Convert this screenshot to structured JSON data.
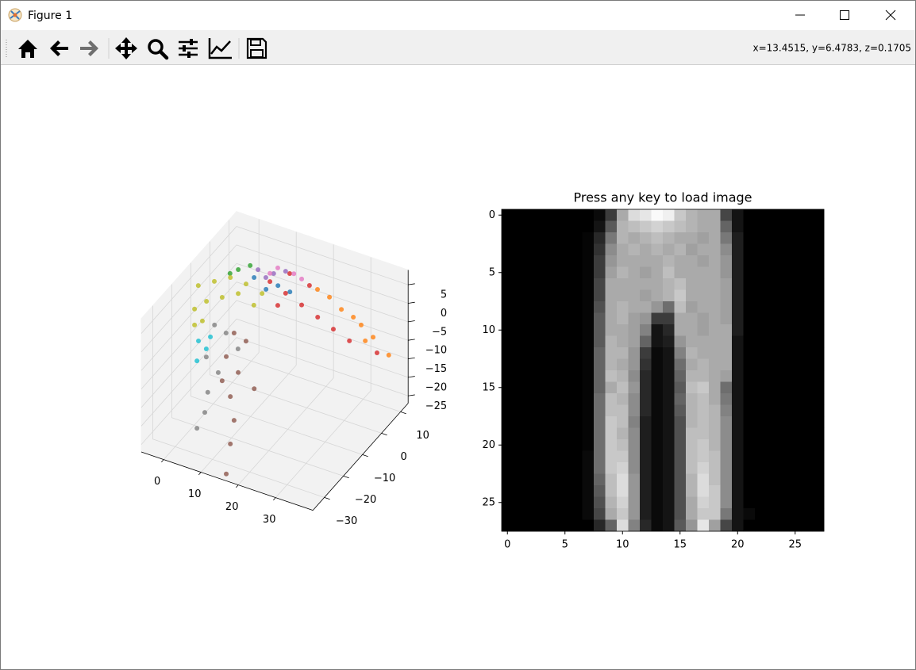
{
  "window": {
    "title": "Figure 1"
  },
  "toolbar": {
    "status": "x=13.4515, y=6.4783, z=0.1705"
  },
  "chart_data": [
    {
      "type": "scatter3d",
      "xlim": [
        -6,
        40
      ],
      "ylim": [
        -36,
        14
      ],
      "zlim": [
        -27,
        9
      ],
      "xticks": [
        0,
        10,
        20,
        30
      ],
      "yticks": [
        {
          "value": -30,
          "label": "−30"
        },
        {
          "value": -20,
          "label": "−20"
        },
        {
          "value": -10,
          "label": "−10"
        },
        0,
        10
      ],
      "zticks": [
        {
          "value": -25,
          "label": "−25"
        },
        {
          "value": -20,
          "label": "−20"
        },
        {
          "value": -15,
          "label": "−15"
        },
        {
          "value": -10,
          "label": "−10"
        },
        {
          "value": -5,
          "label": "−5"
        },
        0,
        5
      ],
      "grid": true,
      "series": [
        {
          "color": "#1f77b4",
          "x": [
            9.7,
            3.3,
            12.9,
            6.5
          ],
          "y": [
            5,
            5,
            5,
            5
          ],
          "z": [
            -0.4,
            -0.4,
            -1.0,
            -2.5
          ]
        },
        {
          "color": "#ff7f0e",
          "x": [
            20.3,
            26.7,
            32.0,
            35.2,
            39.4,
            29.9,
            23.5,
            33.1
          ],
          "y": [
            5,
            5,
            5,
            5,
            5,
            5,
            5,
            5
          ],
          "z": [
            2.2,
            -1.0,
            -3.4,
            -5.6,
            -9.0,
            -2.0,
            1.2,
            -7.3
          ]
        },
        {
          "color": "#2ca02c",
          "x": [
            -3.5,
            -0.3,
            -5.7
          ],
          "y": [
            10,
            10,
            10
          ],
          "z": [
            -3.5,
            -1.3,
            -5.3
          ]
        },
        {
          "color": "#d62728",
          "x": [
            10.1,
            14.3,
            18.6,
            22.9,
            27.1,
            31.4,
            15.4,
            20.7,
            12.2,
            38.8
          ],
          "y": [
            0,
            0,
            0,
            0,
            0,
            0,
            0,
            0,
            0,
            0
          ],
          "z": [
            3.7,
            2.0,
            0.3,
            -1.5,
            -3.3,
            -5.0,
            7.7,
            6.3,
            -2.0,
            -5.7
          ]
        },
        {
          "color": "#9467bd",
          "x": [
            1.8,
            6.0,
            9.2,
            3.9
          ],
          "y": [
            10,
            10,
            10,
            10
          ],
          "z": [
            -1.7,
            -1.3,
            0.4,
            -3.1
          ]
        },
        {
          "color": "#8c564b",
          "x": [
            10.7,
            13.9,
            8.6,
            11.8,
            9.7,
            10.7,
            9.7,
            8.6,
            16.1,
            7.5
          ],
          "y": [
            -20,
            -20,
            -20,
            -20,
            -20,
            -20,
            -20,
            -20,
            -20,
            -20
          ],
          "z": [
            1.6,
            0.5,
            -5.5,
            -8.7,
            -15.9,
            -22.0,
            -28.7,
            -37.2,
            -11.6,
            -12.4
          ]
        },
        {
          "color": "#e377c2",
          "x": [
            7.1,
            11.4,
            5.0,
            13.5
          ],
          "y": [
            10,
            10,
            10,
            10
          ],
          "z": [
            0.6,
            0.5,
            -1.6,
            -0.2
          ]
        },
        {
          "color": "#7f7f7f",
          "x": [
            2.9,
            6.0,
            0.7,
            3.9,
            1.1,
            0.3,
            9.2,
            -1.8
          ],
          "y": [
            -15,
            -15,
            -15,
            -15,
            -15,
            -15,
            -15,
            -15
          ],
          "z": [
            -1.8,
            -2.9,
            -11.2,
            -14.3,
            -20.6,
            -26.3,
            -6.1,
            -31.3
          ]
        },
        {
          "color": "#bcbd22",
          "x": [
            -4.0,
            0.3,
            4.6,
            8.8,
            13.1,
            -5.0,
            -1.8,
            2.4,
            6.7,
            -2.9,
            -5.0,
            10.9
          ],
          "y": [
            -10,
            -10,
            -10,
            -10,
            -10,
            -10,
            -10,
            -10,
            -10,
            -10,
            -10,
            -10
          ],
          "z": [
            3.6,
            6.2,
            8.7,
            8.4,
            7.3,
            -3.1,
            0.1,
            2.6,
            5.1,
            -5.6,
            -7.4,
            3.4
          ]
        },
        {
          "color": "#17becf",
          "x": [
            -1.4,
            0.7,
            -1.8,
            1.8
          ],
          "y": [
            -15,
            -15,
            -15,
            -15
          ],
          "z": [
            -7.6,
            -9.0,
            -13.1,
            -5.4
          ]
        }
      ]
    },
    {
      "type": "image",
      "title": "Press any key to load image",
      "xlim": [
        -0.5,
        27.5
      ],
      "ylim": [
        27.5,
        -0.5
      ],
      "xticks": [
        0,
        5,
        10,
        15,
        20,
        25
      ],
      "yticks": [
        0,
        5,
        10,
        15,
        20,
        25
      ],
      "cmap": "gray",
      "values": [
        [
          0,
          0,
          0,
          0,
          0,
          0,
          0,
          0,
          10,
          60,
          170,
          220,
          230,
          250,
          240,
          200,
          180,
          170,
          170,
          70,
          20,
          0,
          0,
          0,
          0,
          0,
          0,
          0
        ],
        [
          0,
          0,
          0,
          0,
          0,
          0,
          0,
          0,
          20,
          90,
          180,
          190,
          200,
          210,
          200,
          190,
          180,
          170,
          170,
          100,
          20,
          0,
          0,
          0,
          0,
          0,
          0,
          0
        ],
        [
          0,
          0,
          0,
          0,
          0,
          0,
          0,
          5,
          40,
          120,
          180,
          170,
          180,
          190,
          180,
          170,
          170,
          160,
          170,
          120,
          30,
          0,
          0,
          0,
          0,
          0,
          0,
          0
        ],
        [
          0,
          0,
          0,
          0,
          0,
          0,
          0,
          5,
          50,
          140,
          170,
          180,
          170,
          180,
          170,
          180,
          160,
          170,
          170,
          140,
          30,
          0,
          0,
          0,
          0,
          0,
          0,
          0
        ],
        [
          0,
          0,
          0,
          0,
          0,
          0,
          0,
          5,
          60,
          150,
          170,
          170,
          170,
          170,
          180,
          170,
          170,
          160,
          170,
          150,
          30,
          0,
          0,
          0,
          0,
          0,
          0,
          0
        ],
        [
          0,
          0,
          0,
          0,
          0,
          0,
          0,
          5,
          60,
          160,
          180,
          170,
          160,
          170,
          190,
          170,
          170,
          170,
          170,
          150,
          30,
          0,
          0,
          0,
          0,
          0,
          0,
          0
        ],
        [
          0,
          0,
          0,
          0,
          0,
          0,
          0,
          5,
          70,
          170,
          170,
          170,
          170,
          170,
          180,
          190,
          170,
          170,
          170,
          160,
          30,
          0,
          0,
          0,
          0,
          0,
          0,
          0
        ],
        [
          0,
          0,
          0,
          0,
          0,
          0,
          0,
          5,
          70,
          170,
          170,
          170,
          160,
          170,
          180,
          200,
          170,
          170,
          170,
          160,
          30,
          0,
          0,
          0,
          0,
          0,
          0,
          0
        ],
        [
          0,
          0,
          0,
          0,
          0,
          0,
          0,
          5,
          80,
          170,
          180,
          170,
          170,
          150,
          110,
          190,
          160,
          170,
          170,
          160,
          30,
          0,
          0,
          0,
          0,
          0,
          0,
          0
        ],
        [
          0,
          0,
          0,
          0,
          0,
          0,
          0,
          5,
          90,
          170,
          180,
          160,
          150,
          60,
          60,
          170,
          170,
          160,
          170,
          160,
          30,
          0,
          0,
          0,
          0,
          0,
          0,
          0
        ],
        [
          0,
          0,
          0,
          0,
          0,
          0,
          0,
          5,
          90,
          170,
          170,
          160,
          130,
          20,
          40,
          170,
          170,
          160,
          170,
          170,
          30,
          0,
          0,
          0,
          0,
          0,
          0,
          0
        ],
        [
          0,
          0,
          0,
          0,
          0,
          0,
          0,
          5,
          90,
          180,
          170,
          160,
          100,
          20,
          30,
          150,
          170,
          170,
          170,
          170,
          20,
          0,
          0,
          0,
          0,
          0,
          0,
          0
        ],
        [
          0,
          0,
          0,
          0,
          0,
          0,
          0,
          5,
          100,
          180,
          180,
          150,
          60,
          10,
          20,
          130,
          180,
          170,
          170,
          170,
          20,
          0,
          0,
          0,
          0,
          0,
          0,
          0
        ],
        [
          0,
          0,
          0,
          0,
          0,
          0,
          0,
          5,
          100,
          180,
          170,
          150,
          50,
          10,
          20,
          110,
          170,
          180,
          170,
          170,
          20,
          0,
          0,
          0,
          0,
          0,
          0,
          0
        ],
        [
          0,
          0,
          0,
          0,
          0,
          0,
          0,
          5,
          100,
          190,
          180,
          140,
          40,
          10,
          20,
          100,
          180,
          180,
          170,
          160,
          20,
          0,
          0,
          0,
          0,
          0,
          0,
          0
        ],
        [
          0,
          0,
          0,
          0,
          0,
          0,
          0,
          5,
          100,
          170,
          190,
          150,
          40,
          10,
          20,
          90,
          190,
          200,
          170,
          110,
          20,
          0,
          0,
          0,
          0,
          0,
          0,
          0
        ],
        [
          0,
          0,
          0,
          0,
          0,
          0,
          0,
          5,
          110,
          190,
          180,
          140,
          40,
          10,
          20,
          100,
          180,
          190,
          170,
          120,
          20,
          0,
          0,
          0,
          0,
          0,
          0,
          0
        ],
        [
          0,
          0,
          0,
          0,
          0,
          0,
          0,
          5,
          110,
          190,
          190,
          140,
          40,
          10,
          20,
          90,
          180,
          190,
          180,
          130,
          20,
          0,
          0,
          0,
          0,
          0,
          0,
          0
        ],
        [
          0,
          0,
          0,
          0,
          0,
          0,
          0,
          5,
          110,
          200,
          190,
          130,
          30,
          10,
          20,
          80,
          180,
          190,
          180,
          140,
          20,
          0,
          0,
          0,
          0,
          0,
          0,
          0
        ],
        [
          0,
          0,
          0,
          0,
          0,
          0,
          0,
          5,
          110,
          200,
          180,
          140,
          30,
          10,
          20,
          80,
          190,
          190,
          180,
          140,
          20,
          0,
          0,
          0,
          0,
          0,
          0,
          0
        ],
        [
          0,
          0,
          0,
          0,
          0,
          0,
          0,
          5,
          110,
          200,
          190,
          140,
          30,
          10,
          20,
          80,
          190,
          200,
          180,
          140,
          20,
          0,
          0,
          0,
          0,
          0,
          0,
          0
        ],
        [
          0,
          0,
          0,
          0,
          0,
          0,
          0,
          10,
          110,
          200,
          200,
          140,
          30,
          10,
          20,
          80,
          190,
          200,
          190,
          140,
          20,
          0,
          0,
          0,
          0,
          0,
          0,
          0
        ],
        [
          0,
          0,
          0,
          0,
          0,
          0,
          0,
          10,
          110,
          200,
          210,
          140,
          30,
          10,
          20,
          80,
          190,
          210,
          190,
          140,
          20,
          0,
          0,
          0,
          0,
          0,
          0,
          0
        ],
        [
          0,
          0,
          0,
          0,
          0,
          0,
          0,
          10,
          100,
          190,
          220,
          150,
          30,
          10,
          20,
          80,
          180,
          220,
          190,
          140,
          20,
          0,
          0,
          0,
          0,
          0,
          0,
          0
        ],
        [
          0,
          0,
          0,
          0,
          0,
          0,
          0,
          10,
          90,
          190,
          220,
          150,
          30,
          10,
          20,
          80,
          180,
          220,
          200,
          140,
          20,
          0,
          0,
          0,
          0,
          0,
          0,
          0
        ],
        [
          0,
          0,
          0,
          0,
          0,
          0,
          0,
          10,
          80,
          180,
          210,
          150,
          30,
          10,
          20,
          80,
          170,
          210,
          200,
          140,
          20,
          0,
          0,
          0,
          0,
          0,
          0,
          0
        ],
        [
          0,
          0,
          0,
          0,
          0,
          0,
          0,
          10,
          70,
          170,
          200,
          150,
          30,
          10,
          20,
          80,
          170,
          200,
          200,
          120,
          20,
          10,
          0,
          0,
          0,
          0,
          0,
          0
        ],
        [
          0,
          0,
          0,
          0,
          0,
          0,
          0,
          0,
          40,
          100,
          220,
          130,
          40,
          10,
          20,
          90,
          150,
          230,
          160,
          70,
          20,
          0,
          0,
          0,
          0,
          0,
          0,
          0
        ]
      ]
    }
  ]
}
